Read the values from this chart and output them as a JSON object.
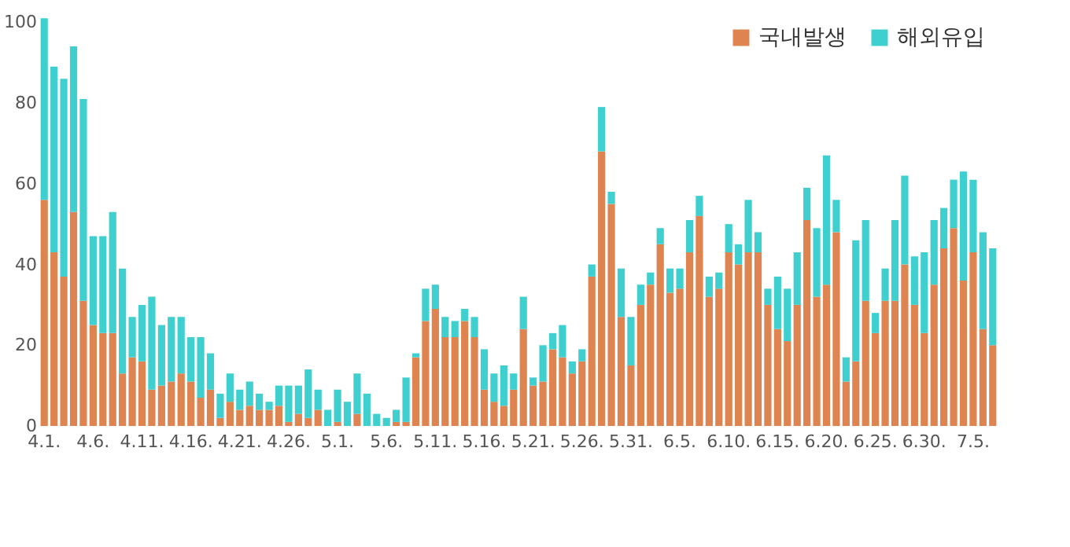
{
  "chart_data": {
    "type": "bar",
    "stacked": true,
    "legend": "top right",
    "grid": false,
    "categories": [
      "4.1.",
      null,
      null,
      null,
      null,
      "4.6.",
      null,
      null,
      null,
      null,
      "4.11.",
      null,
      null,
      null,
      null,
      "4.16.",
      null,
      null,
      null,
      null,
      "4.21.",
      null,
      null,
      null,
      null,
      "4.26.",
      null,
      null,
      null,
      null,
      "5.1.",
      null,
      null,
      null,
      null,
      "5.6.",
      null,
      null,
      null,
      null,
      "5.11.",
      null,
      null,
      null,
      null,
      "5.16.",
      null,
      null,
      null,
      null,
      "5.21.",
      null,
      null,
      null,
      null,
      "5.26.",
      null,
      null,
      null,
      null,
      "5.31.",
      null,
      null,
      null,
      null,
      "6.5.",
      null,
      null,
      null,
      null,
      "6.10.",
      null,
      null,
      null,
      null,
      "6.15.",
      null,
      null,
      null,
      null,
      "6.20.",
      null,
      null,
      null,
      null,
      "6.25.",
      null,
      null,
      null,
      null,
      "6.30.",
      null,
      null,
      null,
      null,
      "7.5.",
      null,
      null
    ],
    "ylim": [
      0,
      102
    ],
    "yticks": [
      0,
      20,
      40,
      60,
      80,
      100
    ],
    "series": [
      {
        "name": "국내발생",
        "color": "#dd8450",
        "values": [
          56,
          43,
          37,
          53,
          31,
          25,
          23,
          23,
          13,
          17,
          16,
          9,
          10,
          11,
          13,
          11,
          7,
          9,
          2,
          6,
          4,
          5,
          4,
          4,
          5,
          1,
          3,
          2,
          4,
          0,
          1,
          0,
          3,
          0,
          0,
          0,
          1,
          1,
          17,
          26,
          29,
          22,
          22,
          26,
          22,
          9,
          6,
          5,
          9,
          24,
          10,
          11,
          19,
          17,
          13,
          16,
          37,
          68,
          55,
          27,
          15,
          30,
          35,
          45,
          33,
          34,
          43,
          52,
          32,
          34,
          43,
          40,
          43,
          43,
          30,
          24,
          21,
          30,
          51,
          32,
          35,
          48,
          11,
          16,
          31,
          23,
          31,
          31,
          40,
          30,
          23,
          35,
          44,
          49,
          36,
          43,
          24,
          20
        ]
      },
      {
        "name": "해외유입",
        "color": "#3fcfcf",
        "values": [
          45,
          46,
          49,
          41,
          50,
          22,
          24,
          30,
          26,
          10,
          14,
          23,
          15,
          16,
          14,
          11,
          15,
          9,
          6,
          7,
          5,
          6,
          4,
          2,
          5,
          9,
          7,
          12,
          5,
          4,
          8,
          6,
          10,
          8,
          3,
          2,
          3,
          11,
          1,
          8,
          6,
          5,
          4,
          3,
          5,
          10,
          7,
          10,
          4,
          8,
          2,
          9,
          4,
          8,
          3,
          3,
          3,
          11,
          3,
          12,
          12,
          5,
          3,
          4,
          6,
          5,
          8,
          5,
          5,
          4,
          7,
          5,
          13,
          5,
          4,
          13,
          13,
          13,
          8,
          17,
          32,
          8,
          6,
          30,
          20,
          5,
          8,
          20,
          22,
          12,
          20,
          16,
          10,
          12,
          27,
          18,
          24,
          24
        ]
      }
    ]
  }
}
